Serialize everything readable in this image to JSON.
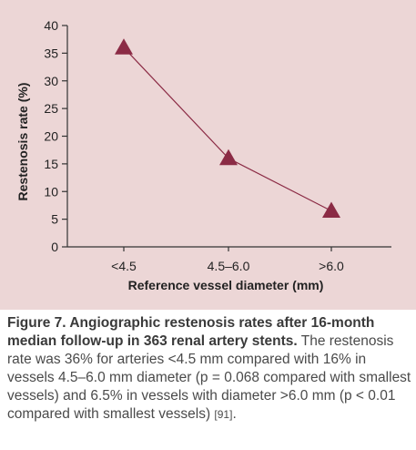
{
  "chart_data": {
    "type": "line",
    "categories": [
      "<4.5",
      "4.5–6.0",
      ">6.0"
    ],
    "values": [
      36,
      16,
      6.5
    ],
    "xlabel": "Reference vessel diameter (mm)",
    "ylabel": "Restenosis rate (%)",
    "ylim": [
      0,
      40
    ],
    "yticks": [
      0,
      5,
      10,
      15,
      20,
      25,
      30,
      35,
      40
    ],
    "grid": false,
    "marker": "triangle",
    "colors": {
      "line": "#8b2b45",
      "marker": "#8b2b45",
      "panel": "#ecd6d6",
      "axis": "#333333"
    }
  },
  "caption": {
    "label": "Figure 7. Angiographic restenosis rates after 16-month median follow-up in 363 renal artery stents.",
    "text": " The restenosis rate was 36% for arteries <4.5 mm compared with 16% in vessels 4.5–6.0 mm diameter (p = 0.068 compared with smallest vessels) and 6.5% in vessels with diameter >6.0 mm (p < 0.01 compared with smallest vessels) ",
    "ref": "[91]",
    "end": "."
  }
}
